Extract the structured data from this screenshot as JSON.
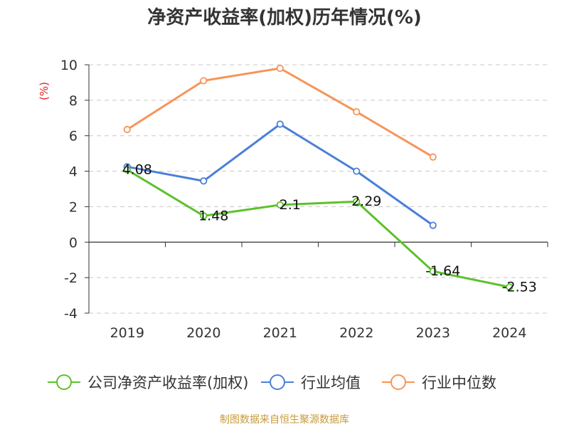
{
  "chart_data": {
    "type": "line",
    "title": "净资产收益率(加权)历年情况(%)",
    "ylabel": "(%)",
    "categories": [
      "2019",
      "2020",
      "2021",
      "2022",
      "2023",
      "2024"
    ],
    "ylim": [
      -4,
      10
    ],
    "yticks": [
      -4,
      -2,
      0,
      2,
      4,
      6,
      8,
      10
    ],
    "grid": true,
    "legend_position": "bottom",
    "series": [
      {
        "name": "公司净资产收益率(加权)",
        "color": "#5cc22a",
        "values": [
          4.08,
          1.48,
          2.1,
          2.29,
          -1.64,
          -2.53
        ],
        "labels": [
          "4.08",
          "1.48",
          "2.1",
          "2.29",
          "-1.64",
          "-2.53"
        ]
      },
      {
        "name": "行业均值",
        "color": "#4a7fd8",
        "values": [
          4.25,
          3.45,
          6.65,
          4.0,
          0.95,
          null
        ]
      },
      {
        "name": "行业中位数",
        "color": "#f79458",
        "values": [
          6.35,
          9.1,
          9.8,
          7.35,
          4.8,
          null
        ]
      }
    ]
  },
  "source": "制图数据来自恒生聚源数据库"
}
